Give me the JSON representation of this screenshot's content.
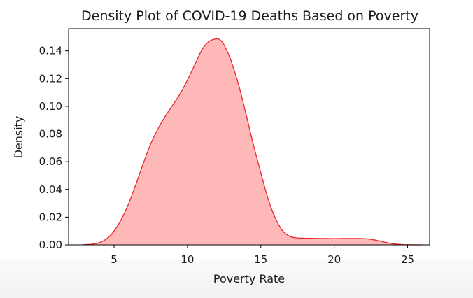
{
  "chart_data": {
    "type": "area",
    "title": "Density Plot of COVID-19 Deaths Based on Poverty",
    "xlabel": "Poverty Rate",
    "ylabel": "Density",
    "xlim": [
      1.9,
      26.5
    ],
    "ylim": [
      0,
      0.156
    ],
    "xticks": [
      5,
      10,
      15,
      20,
      25
    ],
    "yticks": [
      0.0,
      0.02,
      0.04,
      0.06,
      0.08,
      0.1,
      0.12,
      0.14
    ],
    "ytick_labels": [
      "0.00",
      "0.02",
      "0.04",
      "0.06",
      "0.08",
      "0.10",
      "0.12",
      "0.14"
    ],
    "xtick_labels": [
      "5",
      "10",
      "15",
      "20",
      "25"
    ],
    "grid": false,
    "legend": false,
    "series": [
      {
        "color": "#e8262a",
        "fill": "#ffb8b8",
        "x": [
          2.9,
          3.5,
          4,
          4.5,
          5,
          5.5,
          6,
          6.5,
          7,
          7.5,
          8,
          8.5,
          9,
          9.5,
          10,
          10.5,
          11,
          11.5,
          12,
          12.2,
          12.4,
          12.6,
          12.8,
          13,
          13.5,
          14,
          14.5,
          15,
          15.5,
          16,
          16.5,
          17,
          17.5,
          18,
          18.5,
          19,
          19.5,
          20,
          20.5,
          21,
          21.5,
          22,
          22.5,
          23,
          23.5,
          24,
          24.5,
          25,
          26
        ],
        "y": [
          0.0001,
          0.0005,
          0.0016,
          0.0045,
          0.01,
          0.0185,
          0.03,
          0.044,
          0.059,
          0.073,
          0.084,
          0.093,
          0.101,
          0.109,
          0.119,
          0.13,
          0.141,
          0.147,
          0.1487,
          0.148,
          0.146,
          0.142,
          0.1375,
          0.132,
          0.115,
          0.094,
          0.072,
          0.052,
          0.033,
          0.019,
          0.01,
          0.006,
          0.005,
          0.0048,
          0.0047,
          0.0046,
          0.0046,
          0.0045,
          0.0046,
          0.0046,
          0.0046,
          0.0045,
          0.004,
          0.003,
          0.0018,
          0.0008,
          0.0003,
          0.0001,
          0.0
        ]
      }
    ]
  }
}
